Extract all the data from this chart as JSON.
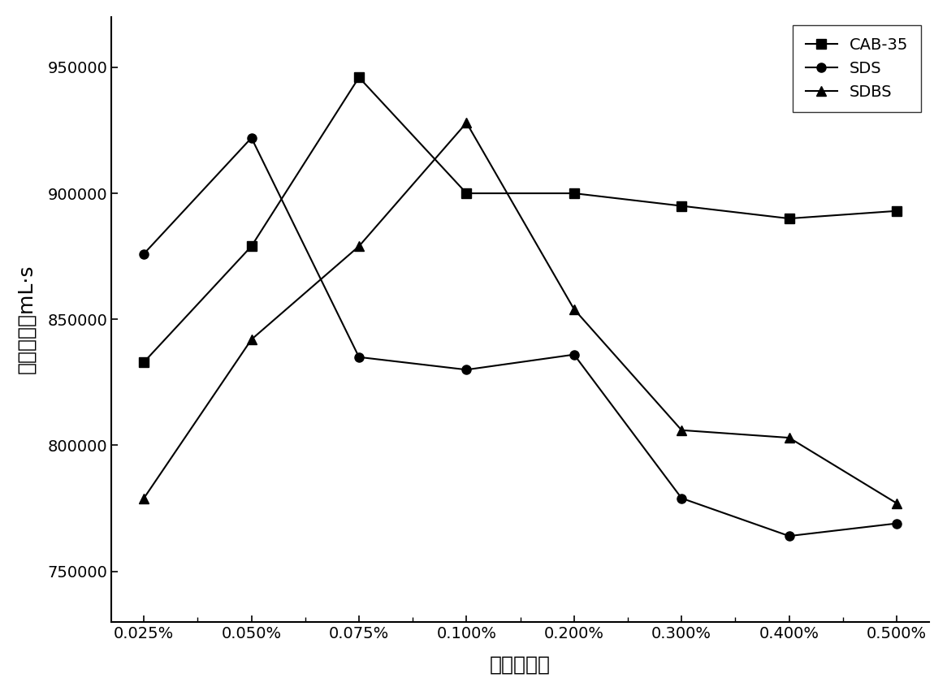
{
  "x_labels": [
    "0.025%",
    "0.050%",
    "0.075%",
    "0.100%",
    "0.200%",
    "0.300%",
    "0.400%",
    "0.500%"
  ],
  "series": [
    {
      "label": "CAB-35",
      "values": [
        833000,
        879000,
        946000,
        900000,
        900000,
        895000,
        890000,
        893000
      ],
      "marker": "s",
      "color": "#000000",
      "linestyle": "-"
    },
    {
      "label": "SDS",
      "values": [
        876000,
        922000,
        835000,
        830000,
        836000,
        779000,
        764000,
        769000
      ],
      "marker": "o",
      "color": "#000000",
      "linestyle": "-"
    },
    {
      "label": "SDBS",
      "values": [
        779000,
        842000,
        879000,
        928000,
        854000,
        806000,
        803000,
        777000
      ],
      "marker": "^",
      "color": "#000000",
      "linestyle": "-"
    }
  ],
  "xlabel": "起泡剤浓度",
  "ylabel": "泡沫综合值mL·s",
  "ylim": [
    730000,
    970000
  ],
  "yticks": [
    750000,
    800000,
    850000,
    900000,
    950000
  ],
  "background_color": "#ffffff",
  "legend_loc": "upper right",
  "marker_size": 8,
  "linewidth": 1.5,
  "label_fontsize": 18,
  "tick_fontsize": 14,
  "legend_fontsize": 14
}
